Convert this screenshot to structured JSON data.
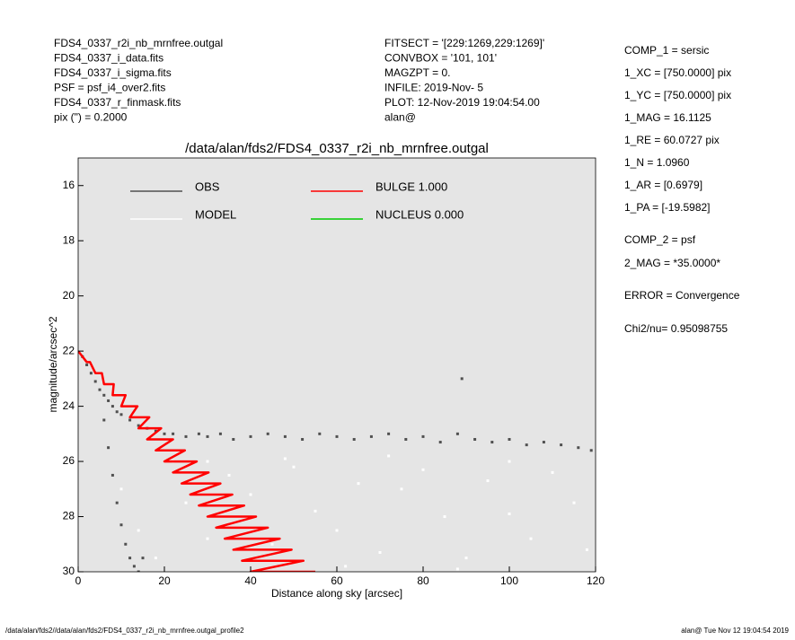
{
  "header": {
    "left": [
      "FDS4_0337_r2i_nb_mrnfree.outgal",
      "FDS4_0337_i_data.fits",
      "FDS4_0337_i_sigma.fits",
      "PSF     = psf_i4_over2.fits",
      "FDS4_0337_r_finmask.fits",
      "pix (\") =  0.2000"
    ],
    "middle": [
      "FITSECT = '[229:1269,229:1269]'",
      "CONVBOX = '101, 101'",
      "MAGZPT  =                0.",
      "INFILE: 2019-Nov- 5",
      "PLOT: 12-Nov-2019 19:04:54.00",
      "alan@"
    ],
    "right": [
      "COMP_1  = sersic",
      "1_XC    = [750.0000] pix",
      "1_YC    = [750.0000] pix",
      "1_MAG   = 16.1125",
      "1_RE    = 60.0727 pix",
      "1_N     = 1.0960",
      "1_AR    = [0.6979]",
      "1_PA    = [-19.5982]",
      "COMP_2  = psf",
      "2_MAG   = *35.0000*",
      "ERROR   = Convergence",
      "Chi2/nu=     0.95098755"
    ]
  },
  "footer": {
    "left": "/data/alan/fds2//data/alan/fds2/FDS4_0337_r2i_nb_mrnfree.outgal_profile2",
    "right": "alan@  Tue Nov 12 19:04:54 2019"
  },
  "chart_data": {
    "type": "scatter",
    "title": "/data/alan/fds2/FDS4_0337_r2i_nb_mrnfree.outgal",
    "x_label": "Distance along sky [arcsec]",
    "y_label": "magnitude/arcsec^2",
    "xlim": [
      0,
      120
    ],
    "xticks": [
      0,
      20,
      40,
      60,
      80,
      100,
      120
    ],
    "ylim": [
      15,
      30
    ],
    "yticks": [
      16,
      18,
      20,
      22,
      24,
      26,
      28,
      30
    ],
    "y_inverted": true,
    "background": "#e5e5e5",
    "series": [
      {
        "name": "OBS",
        "color": "#505050",
        "x": [
          1,
          2,
          3,
          4,
          5,
          6,
          7,
          8,
          9,
          10,
          12,
          14,
          16,
          18,
          20,
          22,
          25,
          28,
          30,
          33,
          36,
          40,
          44,
          48,
          52,
          56,
          60,
          64,
          68,
          72,
          76,
          80,
          84,
          88,
          92,
          96,
          100,
          104,
          108,
          112,
          116,
          119,
          6,
          7,
          8,
          9,
          10,
          11,
          12,
          13,
          14,
          15,
          89
        ],
        "values": [
          22.2,
          22.5,
          22.8,
          23.1,
          23.4,
          23.6,
          23.8,
          24,
          24.2,
          24.3,
          24.5,
          24.7,
          24.8,
          24.9,
          25,
          25,
          25.1,
          25,
          25.1,
          25,
          25.2,
          25.1,
          25,
          25.1,
          25.2,
          25,
          25.1,
          25.2,
          25.1,
          25,
          25.2,
          25.1,
          25.3,
          25,
          25.2,
          25.3,
          25.2,
          25.4,
          25.3,
          25.4,
          25.5,
          25.6,
          24.5,
          25.5,
          26.5,
          27.5,
          28.3,
          29,
          29.5,
          29.8,
          30,
          29.5,
          23
        ]
      },
      {
        "name": "MODEL",
        "color": "#ffffff",
        "x": [
          10,
          14,
          18,
          22,
          25,
          30,
          35,
          40,
          45,
          50,
          55,
          60,
          65,
          70,
          75,
          80,
          85,
          90,
          95,
          100,
          105,
          110,
          115,
          118,
          62,
          88,
          30,
          48,
          72,
          100
        ],
        "values": [
          27,
          28.5,
          29.5,
          26,
          27.5,
          28.8,
          26.5,
          27.2,
          29,
          26.2,
          27.8,
          28.5,
          26.8,
          29.3,
          27,
          26.3,
          28,
          29.5,
          26.7,
          27.9,
          28.8,
          26.4,
          27.5,
          29.2,
          29.8,
          29.9,
          26,
          25.9,
          25.8,
          26
        ]
      },
      {
        "name": "BULGE  1.000",
        "color": "#ff0000",
        "type": "line",
        "x": [
          0,
          2,
          2.75,
          4,
          5.5,
          6,
          8.25,
          8,
          11,
          10,
          13.75,
          12,
          16.5,
          14,
          19.25,
          16,
          22,
          18,
          24.75,
          20,
          27.5,
          22,
          30.25,
          24,
          33,
          26,
          35.75,
          28,
          38.5,
          30,
          41.25,
          32,
          44,
          34,
          46.75,
          36,
          49.5,
          38,
          52.25,
          40,
          55
        ],
        "values": [
          22,
          22.4,
          22.4,
          22.8,
          22.8,
          23.2,
          23.2,
          23.6,
          23.6,
          24,
          24,
          24.4,
          24.4,
          24.8,
          24.8,
          25.2,
          25.2,
          25.6,
          25.6,
          26,
          26,
          26.4,
          26.4,
          26.8,
          26.8,
          27.2,
          27.2,
          27.6,
          27.6,
          28,
          28,
          28.4,
          28.4,
          28.8,
          28.8,
          29.2,
          29.2,
          29.6,
          29.6,
          30,
          30
        ]
      },
      {
        "name": "NUCLEUS  0.000",
        "color": "#00cc00",
        "x": [],
        "values": []
      }
    ]
  }
}
